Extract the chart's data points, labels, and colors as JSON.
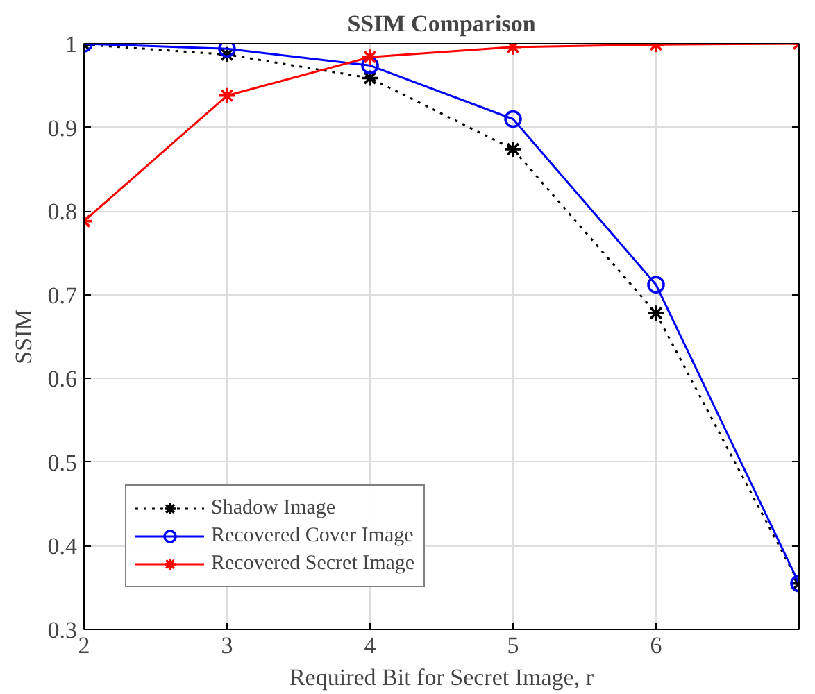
{
  "chart_data": {
    "type": "line",
    "title": "SSIM Comparison",
    "xlabel": "Required Bit for Secret Image, r",
    "ylabel": "SSIM",
    "x": [
      2,
      3,
      4,
      5,
      6,
      7
    ],
    "series": [
      {
        "name": "Shadow Image",
        "color": "#000000",
        "marker": "cross",
        "line_style": "dotted",
        "values": [
          0.999,
          0.987,
          0.959,
          0.874,
          0.678,
          0.355
        ]
      },
      {
        "name": "Recovered Cover Image",
        "color": "#0000ff",
        "marker": "circle",
        "line_style": "solid",
        "values": [
          1.0,
          0.994,
          0.974,
          0.91,
          0.712,
          0.355
        ]
      },
      {
        "name": "Recovered Secret Image",
        "color": "#ff0000",
        "marker": "cross",
        "line_style": "solid",
        "values": [
          0.788,
          0.938,
          0.984,
          0.996,
          0.999,
          1.0
        ]
      }
    ],
    "xlim": [
      2,
      7
    ],
    "xticks": [
      2,
      3,
      4,
      5,
      6
    ],
    "ylim": [
      0.3,
      1
    ],
    "yticks": [
      0.3,
      0.4,
      0.5,
      0.6,
      0.7,
      0.8,
      0.9,
      1
    ],
    "grid": true,
    "legend": "bottom left"
  }
}
